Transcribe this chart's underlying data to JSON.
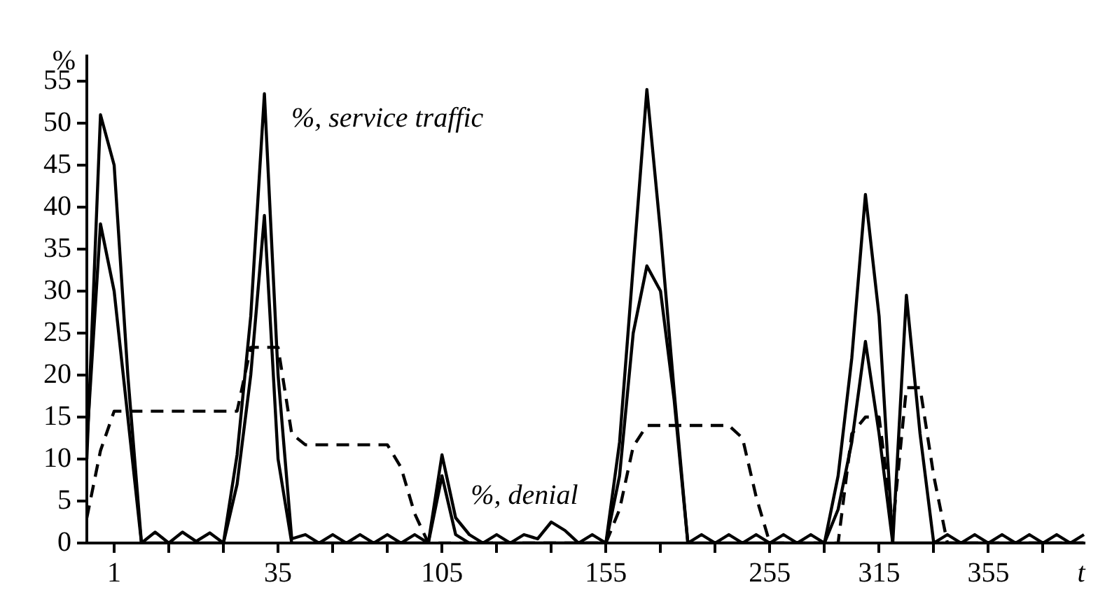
{
  "chart_data": {
    "type": "line",
    "xlabel": "t",
    "ylabel": "%",
    "categories": [
      null,
      null,
      "1",
      null,
      null,
      null,
      null,
      null,
      null,
      null,
      null,
      null,
      null,
      null,
      "35",
      null,
      null,
      null,
      null,
      null,
      null,
      null,
      null,
      null,
      null,
      null,
      "105",
      null,
      null,
      null,
      null,
      null,
      null,
      null,
      null,
      null,
      null,
      null,
      "155",
      null,
      null,
      null,
      null,
      null,
      null,
      null,
      null,
      null,
      null,
      null,
      "255",
      null,
      null,
      null,
      null,
      null,
      null,
      null,
      "315",
      null,
      null,
      null,
      null,
      null,
      null,
      null,
      "355",
      null,
      null,
      null,
      null,
      null,
      null,
      null
    ],
    "series": [
      {
        "color": "#000000",
        "values": [
          10,
          51,
          45,
          20,
          0,
          1.3,
          0,
          1.3,
          0.2,
          1.2,
          0,
          10.5,
          27,
          53.5,
          20,
          0.5,
          1,
          0,
          1,
          0,
          1,
          0,
          1,
          0,
          1,
          0,
          10.5,
          3,
          1,
          0,
          1,
          0,
          1,
          0.5,
          2.5,
          1.5,
          0,
          1,
          0,
          12,
          33,
          54,
          37,
          18,
          0,
          1,
          0,
          1,
          0,
          1,
          0,
          1,
          0,
          1,
          0,
          8,
          22,
          41.5,
          27,
          0,
          29.5,
          13,
          0,
          1,
          0,
          1,
          0,
          1,
          0,
          1,
          0,
          1,
          0,
          1
        ]
      },
      {
        "color": "#000000",
        "values": [
          12,
          38,
          30,
          15,
          0,
          0,
          0,
          0,
          0,
          0,
          0,
          7,
          20,
          39,
          10,
          0,
          0,
          0,
          0,
          0,
          0,
          0,
          0,
          0,
          0,
          0,
          8,
          1,
          0,
          0,
          0,
          0,
          0,
          0,
          0,
          0,
          0,
          0,
          0,
          8,
          25,
          33,
          30,
          17,
          0,
          0,
          0,
          0,
          0,
          0,
          0,
          0,
          0,
          0,
          0,
          4,
          12,
          24,
          13,
          0,
          0,
          0,
          0,
          0,
          0,
          0,
          0,
          0,
          0,
          0,
          0,
          0,
          0,
          0
        ]
      },
      {
        "color": "#000000",
        "line_style": "dashed",
        "values": [
          3,
          11,
          15.7,
          15.7,
          15.7,
          15.7,
          15.7,
          15.7,
          15.7,
          15.7,
          15.7,
          15.7,
          23.3,
          23.3,
          23.3,
          13,
          11.7,
          11.7,
          11.7,
          11.7,
          11.7,
          11.7,
          11.7,
          9,
          3.5,
          0,
          0,
          0,
          0,
          0,
          0,
          0,
          0,
          0,
          0,
          0,
          0,
          0,
          0,
          4,
          11.5,
          14,
          14,
          14,
          14,
          14,
          14,
          14,
          12.5,
          5.5,
          0,
          0,
          0,
          0,
          0,
          0,
          13,
          15,
          15,
          2,
          18.5,
          18.5,
          8,
          0,
          0,
          0,
          0,
          0,
          0,
          0,
          0,
          0,
          0,
          0
        ]
      }
    ],
    "ylim": [
      0,
      58
    ],
    "yticks": [
      0,
      5,
      10,
      15,
      20,
      25,
      30,
      35,
      40,
      45,
      50,
      55
    ],
    "annotations": [
      "%, service traffic",
      "%, denial"
    ],
    "grid": false,
    "legend": false,
    "marker": "none"
  }
}
